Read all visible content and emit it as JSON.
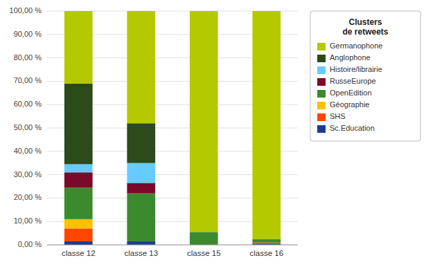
{
  "chart_data": {
    "type": "bar",
    "stacked": true,
    "categories": [
      "classe 12",
      "classe 13",
      "classe 15",
      "classe 16"
    ],
    "series": [
      {
        "name": "Sc.Education",
        "color": "#1a3d8f",
        "values": [
          1.5,
          1.5,
          0.0,
          0.5
        ]
      },
      {
        "name": "SHS",
        "color": "#ff4500",
        "values": [
          5.5,
          0.0,
          0.0,
          0.5
        ]
      },
      {
        "name": "Géographie",
        "color": "#ffc000",
        "values": [
          4.0,
          0.0,
          0.0,
          0.0
        ]
      },
      {
        "name": "OpenEdition",
        "color": "#3c8a2e",
        "values": [
          13.5,
          20.5,
          5.5,
          1.5
        ]
      },
      {
        "name": "RusseEurope",
        "color": "#7b0a2a",
        "values": [
          6.5,
          4.5,
          0.0,
          0.0
        ]
      },
      {
        "name": "Histoire/librairie",
        "color": "#66ccff",
        "values": [
          3.5,
          8.5,
          0.0,
          0.0
        ]
      },
      {
        "name": "Anglophone",
        "color": "#2d4a1a",
        "values": [
          34.5,
          17.0,
          0.0,
          0.0
        ]
      },
      {
        "name": "Germanophone",
        "color": "#b5c900",
        "values": [
          31.0,
          48.0,
          94.5,
          97.5
        ]
      }
    ],
    "legend_title": "Clusters\nde retweets",
    "legend": "right",
    "ylim": [
      0,
      100
    ],
    "yticks": [
      {
        "value": 0,
        "label": "0,00 %"
      },
      {
        "value": 10,
        "label": "10,00 %"
      },
      {
        "value": 20,
        "label": "20,00 %"
      },
      {
        "value": 30,
        "label": "30,00 %"
      },
      {
        "value": 40,
        "label": "40,00 %"
      },
      {
        "value": 50,
        "label": "50,00 %"
      },
      {
        "value": 60,
        "label": "60,00 %"
      },
      {
        "value": 70,
        "label": "70,00 %"
      },
      {
        "value": 80,
        "label": "80,00 %"
      },
      {
        "value": 90,
        "label": "90,00 %"
      },
      {
        "value": 100,
        "label": "100,00 %"
      }
    ],
    "grid": true
  }
}
